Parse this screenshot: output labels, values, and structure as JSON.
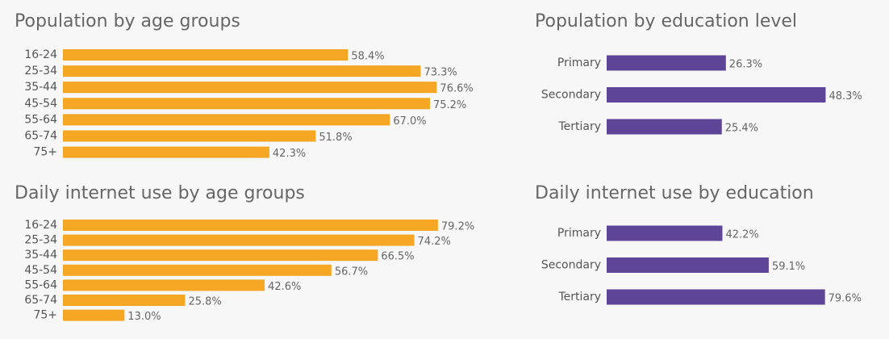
{
  "colors": {
    "age_bar": "#F5A623",
    "edu_bar": "#5E4597",
    "background": "#f7f7f7",
    "title_text": "#666666"
  },
  "chart_data": [
    {
      "type": "bar",
      "orientation": "horizontal",
      "title": "Population by age groups",
      "categories": [
        "16-24",
        "25-34",
        "35-44",
        "45-54",
        "55-64",
        "65-74",
        "75+"
      ],
      "values": [
        58.4,
        73.3,
        76.6,
        75.2,
        67.0,
        51.8,
        42.3
      ],
      "value_labels": [
        "58.4%",
        "73.3%",
        "76.6%",
        "75.2%",
        "67.0%",
        "51.8%",
        "42.3%"
      ],
      "xlim": [
        0,
        100
      ],
      "grid": false,
      "color": "#F5A623"
    },
    {
      "type": "bar",
      "orientation": "horizontal",
      "title": "Population by education level",
      "categories": [
        "Primary",
        "Secondary",
        "Tertiary"
      ],
      "values": [
        26.3,
        48.3,
        25.4
      ],
      "value_labels": [
        "26.3%",
        "48.3%",
        "25.4%"
      ],
      "xlim": [
        0,
        60
      ],
      "grid": false,
      "color": "#5E4597"
    },
    {
      "type": "bar",
      "orientation": "horizontal",
      "title": "Daily internet use by age groups",
      "categories": [
        "16-24",
        "25-34",
        "35-44",
        "45-54",
        "55-64",
        "65-74",
        "75+"
      ],
      "values": [
        79.2,
        74.2,
        66.5,
        56.7,
        42.6,
        25.8,
        13.0
      ],
      "value_labels": [
        "79.2%",
        "74.2%",
        "66.5%",
        "56.7%",
        "42.6%",
        "25.8%",
        "13.0%"
      ],
      "xlim": [
        0,
        100
      ],
      "grid": false,
      "color": "#F5A623"
    },
    {
      "type": "bar",
      "orientation": "horizontal",
      "title": "Daily internet use by education",
      "categories": [
        "Primary",
        "Secondary",
        "Tertiary"
      ],
      "values": [
        42.2,
        59.1,
        79.6
      ],
      "value_labels": [
        "42.2%",
        "59.1%",
        "79.6%"
      ],
      "xlim": [
        0,
        100
      ],
      "grid": false,
      "color": "#5E4597"
    }
  ]
}
